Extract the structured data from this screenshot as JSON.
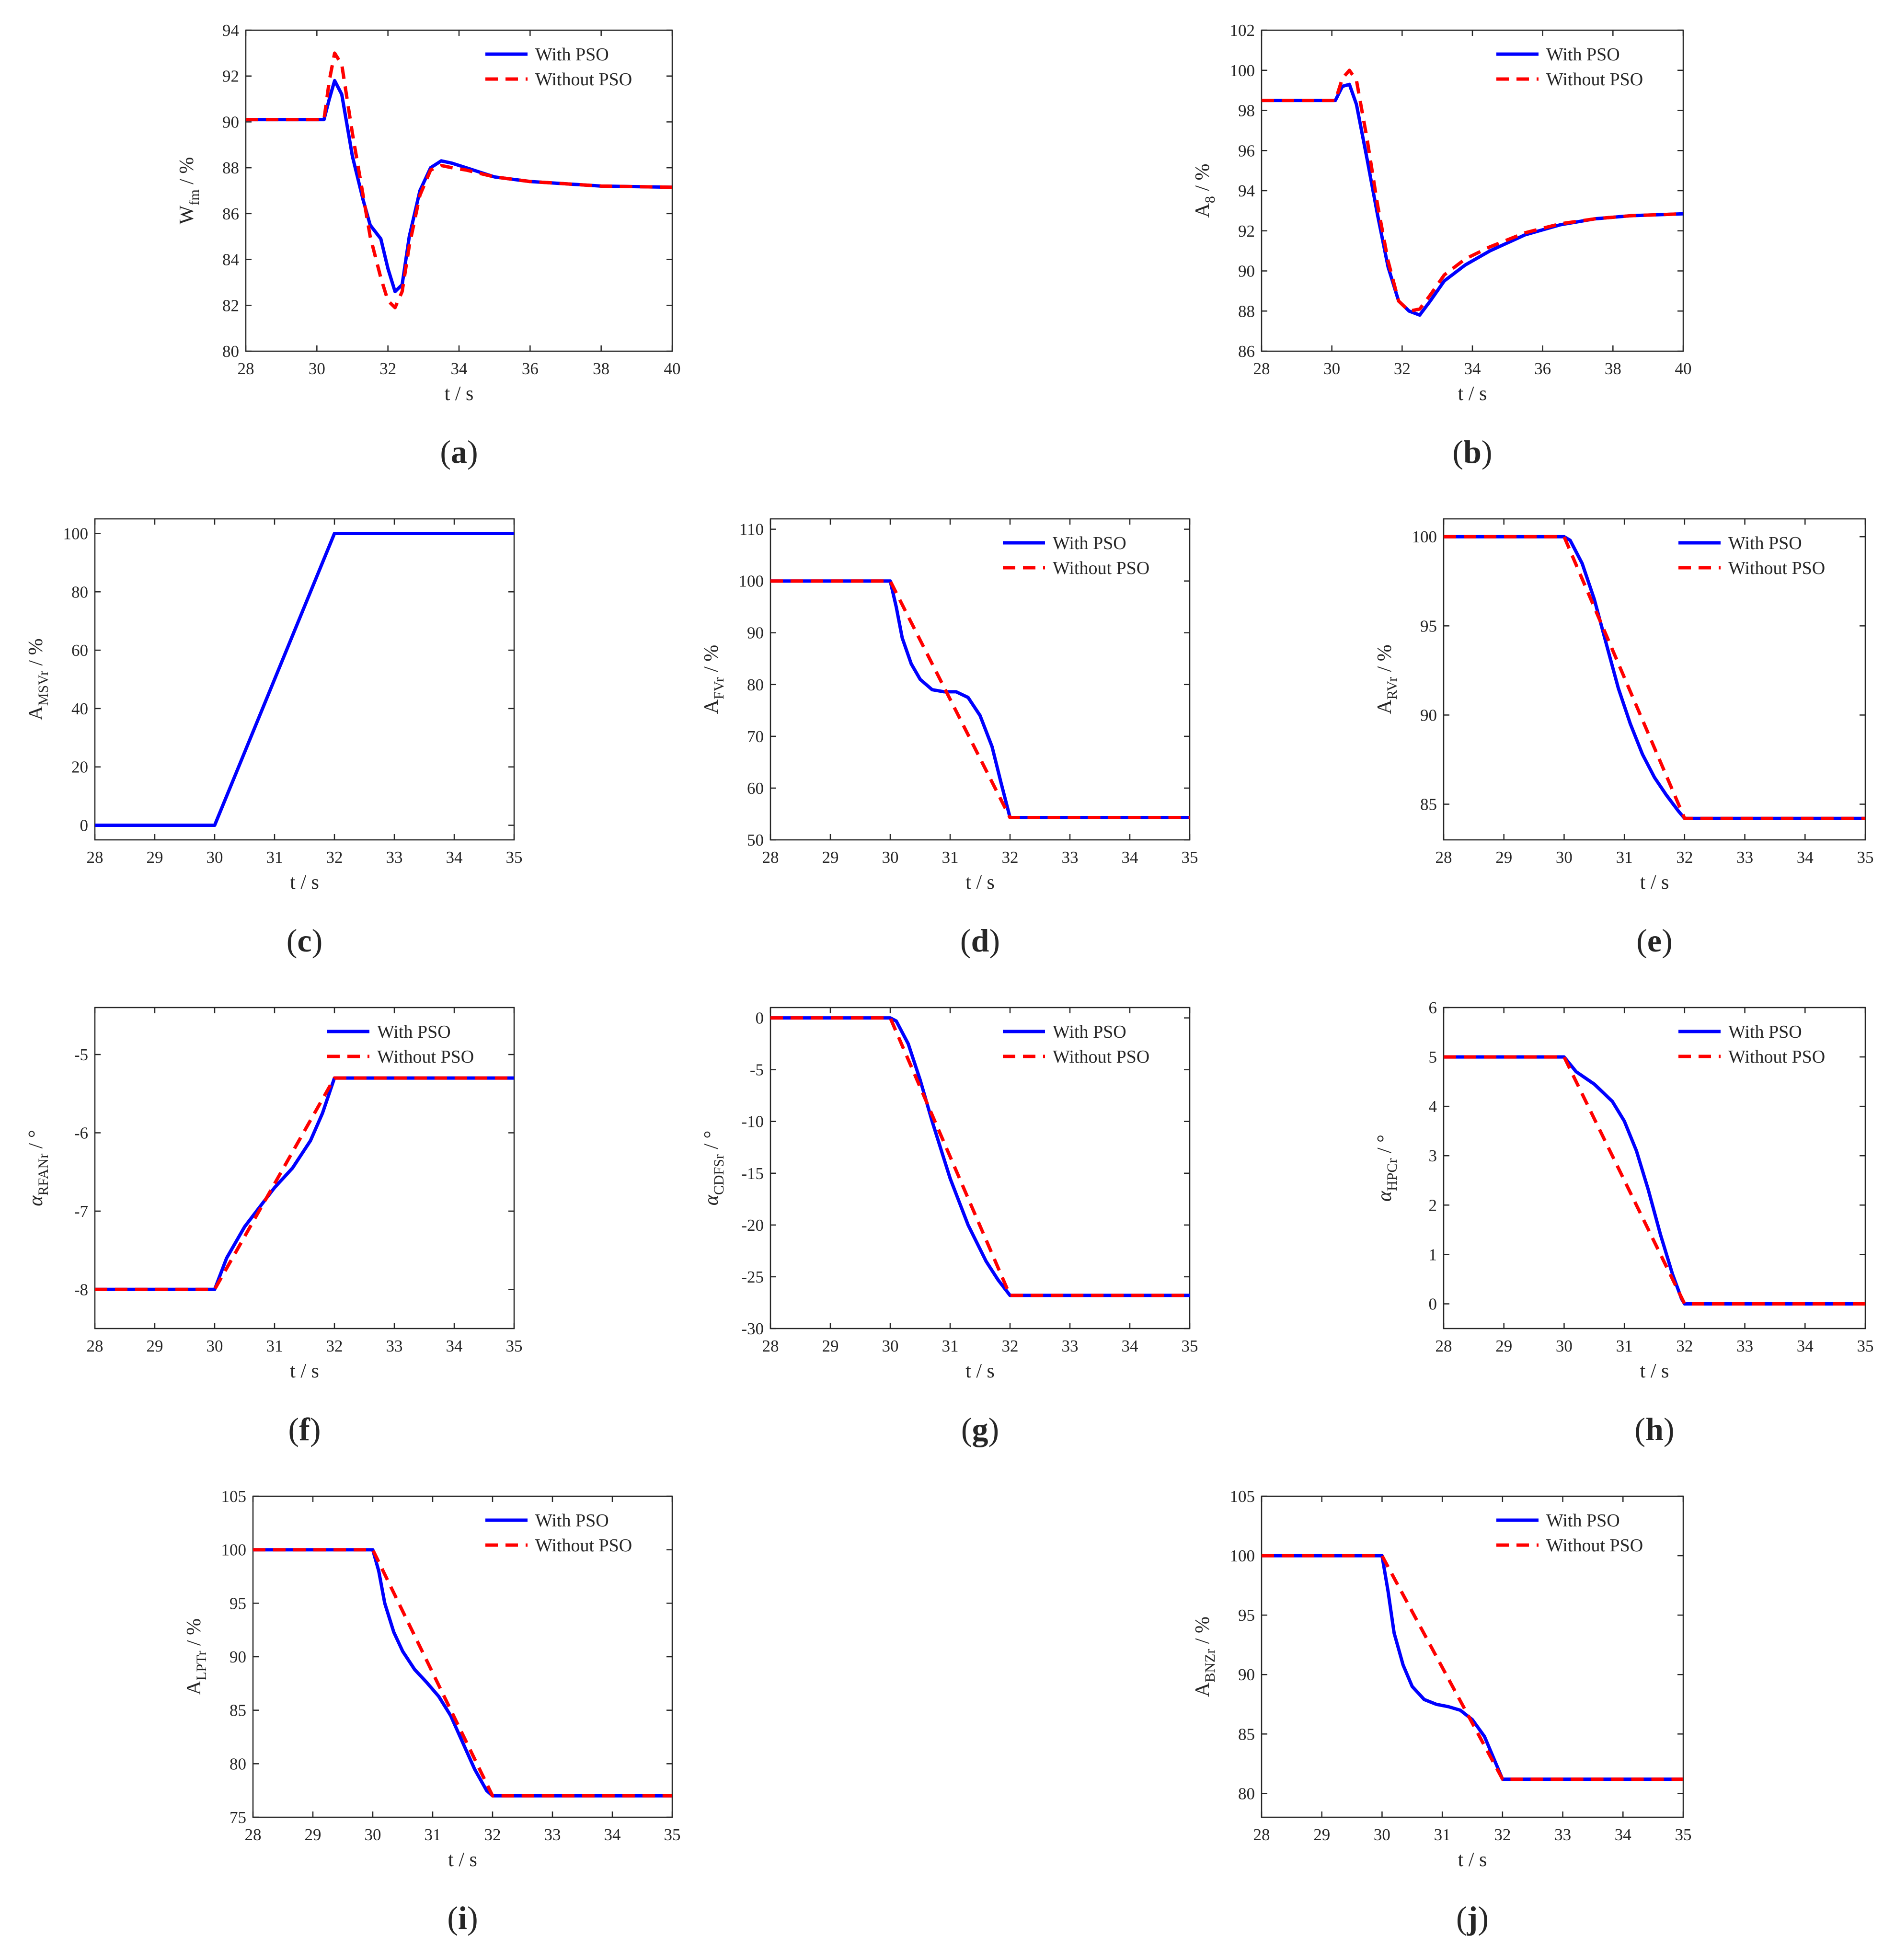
{
  "figure": {
    "legend": {
      "with": "With PSO",
      "without": "Without PSO"
    },
    "colors": {
      "with": "#0000ff",
      "without": "#ff0000",
      "axis": "#262626"
    }
  },
  "chart_data": [
    {
      "id": "a",
      "panel_label": "a",
      "type": "line",
      "ylabel_main": "W",
      "ylabel_sub": "fm",
      "ylabel_unit": " / %",
      "xlabel": "t / s",
      "xlim": [
        28,
        40
      ],
      "xticks": [
        28,
        30,
        32,
        34,
        36,
        38,
        40
      ],
      "ylim": [
        80,
        94
      ],
      "yticks": [
        80,
        82,
        84,
        86,
        88,
        90,
        92,
        94
      ],
      "legend": true,
      "series": [
        {
          "name": "With PSO",
          "x": [
            28,
            30.2,
            30.35,
            30.5,
            30.7,
            31.0,
            31.3,
            31.5,
            31.8,
            32.0,
            32.2,
            32.4,
            32.6,
            32.9,
            33.2,
            33.5,
            33.8,
            34.2,
            35.0,
            36.0,
            37.0,
            38.0,
            40.0
          ],
          "y": [
            90.1,
            90.1,
            91.0,
            91.8,
            91.2,
            88.5,
            86.6,
            85.5,
            84.9,
            83.6,
            82.6,
            82.9,
            85.0,
            87.0,
            88.0,
            88.3,
            88.2,
            88.0,
            87.6,
            87.4,
            87.3,
            87.2,
            87.15
          ]
        },
        {
          "name": "Without PSO",
          "x": [
            28,
            30.2,
            30.35,
            30.5,
            30.7,
            31.0,
            31.3,
            31.5,
            31.8,
            32.0,
            32.2,
            32.4,
            32.6,
            32.9,
            33.2,
            33.5,
            33.8,
            34.2,
            35.0,
            36.0,
            37.0,
            38.0,
            40.0
          ],
          "y": [
            90.1,
            90.1,
            91.8,
            93.0,
            92.5,
            89.5,
            86.8,
            85.0,
            83.2,
            82.2,
            81.9,
            82.6,
            84.6,
            86.8,
            87.9,
            88.1,
            88.0,
            87.9,
            87.6,
            87.4,
            87.3,
            87.2,
            87.15
          ]
        }
      ]
    },
    {
      "id": "b",
      "panel_label": "b",
      "type": "line",
      "ylabel_main": "A",
      "ylabel_sub": "8",
      "ylabel_unit": " / %",
      "xlabel": "t / s",
      "xlim": [
        28,
        40
      ],
      "xticks": [
        28,
        30,
        32,
        34,
        36,
        38,
        40
      ],
      "ylim": [
        86,
        102
      ],
      "yticks": [
        86,
        88,
        90,
        92,
        94,
        96,
        98,
        100,
        102
      ],
      "legend": true,
      "series": [
        {
          "name": "With PSO",
          "x": [
            28,
            30.1,
            30.3,
            30.5,
            30.7,
            31.0,
            31.3,
            31.6,
            31.9,
            32.2,
            32.5,
            32.8,
            33.2,
            33.8,
            34.5,
            35.5,
            36.5,
            37.5,
            38.5,
            40.0
          ],
          "y": [
            98.5,
            98.5,
            99.2,
            99.3,
            98.3,
            95.6,
            92.8,
            90.2,
            88.5,
            88.0,
            87.8,
            88.5,
            89.5,
            90.3,
            91.0,
            91.8,
            92.3,
            92.6,
            92.75,
            92.85
          ]
        },
        {
          "name": "Without PSO",
          "x": [
            28,
            30.1,
            30.3,
            30.5,
            30.7,
            31.0,
            31.3,
            31.6,
            31.9,
            32.2,
            32.5,
            32.8,
            33.2,
            33.8,
            34.5,
            35.5,
            36.5,
            37.5,
            38.5,
            40.0
          ],
          "y": [
            98.5,
            98.5,
            99.6,
            100.0,
            99.5,
            96.6,
            93.3,
            90.5,
            88.5,
            88.0,
            88.1,
            88.8,
            89.8,
            90.6,
            91.2,
            91.9,
            92.35,
            92.6,
            92.75,
            92.85
          ]
        }
      ]
    },
    {
      "id": "c",
      "panel_label": "c",
      "type": "line",
      "ylabel_main": "A",
      "ylabel_sub": "MSVr",
      "ylabel_unit": " / %",
      "xlabel": "t / s",
      "xlim": [
        28,
        35
      ],
      "xticks": [
        28,
        29,
        30,
        31,
        32,
        33,
        34,
        35
      ],
      "ylim": [
        -5,
        105
      ],
      "yticks": [
        0,
        20,
        40,
        60,
        80,
        100
      ],
      "legend": false,
      "series": [
        {
          "name": "With PSO",
          "x": [
            28,
            30,
            32,
            35
          ],
          "y": [
            0,
            0,
            100,
            100
          ]
        }
      ]
    },
    {
      "id": "d",
      "panel_label": "d",
      "type": "line",
      "ylabel_main": "A",
      "ylabel_sub": "FVr",
      "ylabel_unit": " / %",
      "xlabel": "t / s",
      "xlim": [
        28,
        35
      ],
      "xticks": [
        28,
        29,
        30,
        31,
        32,
        33,
        34,
        35
      ],
      "ylim": [
        50,
        112
      ],
      "yticks": [
        50,
        60,
        70,
        80,
        90,
        100,
        110
      ],
      "legend": true,
      "series": [
        {
          "name": "With PSO",
          "x": [
            28,
            30,
            30.1,
            30.2,
            30.35,
            30.5,
            30.7,
            30.9,
            31.1,
            31.3,
            31.5,
            31.7,
            31.85,
            32,
            35
          ],
          "y": [
            100,
            100,
            95,
            89,
            84,
            81,
            79,
            78.6,
            78.6,
            77.5,
            74,
            68,
            61,
            54.3,
            54.3
          ]
        },
        {
          "name": "Without PSO",
          "x": [
            28,
            30,
            32,
            35
          ],
          "y": [
            100,
            100,
            54.3,
            54.3
          ]
        }
      ]
    },
    {
      "id": "e",
      "panel_label": "e",
      "type": "line",
      "ylabel_main": "A",
      "ylabel_sub": "RVr",
      "ylabel_unit": " / %",
      "xlabel": "t / s",
      "xlim": [
        28,
        35
      ],
      "xticks": [
        28,
        29,
        30,
        31,
        32,
        33,
        34,
        35
      ],
      "ylim": [
        83,
        101
      ],
      "yticks": [
        85,
        90,
        95,
        100
      ],
      "legend": true,
      "series": [
        {
          "name": "With PSO",
          "x": [
            28,
            30,
            30.1,
            30.3,
            30.5,
            30.7,
            30.9,
            31.1,
            31.3,
            31.5,
            31.7,
            31.9,
            32,
            35
          ],
          "y": [
            100,
            100,
            99.8,
            98.5,
            96.5,
            94.0,
            91.5,
            89.5,
            87.8,
            86.5,
            85.5,
            84.6,
            84.2,
            84.2
          ]
        },
        {
          "name": "Without PSO",
          "x": [
            28,
            30,
            32,
            35
          ],
          "y": [
            100,
            100,
            84.2,
            84.2
          ]
        }
      ]
    },
    {
      "id": "f",
      "panel_label": "f",
      "type": "line",
      "ylabel_main": "α",
      "ylabel_sub": "RFANr",
      "ylabel_unit": "  /  °",
      "xlabel": "t  /  s",
      "xlim": [
        28,
        35
      ],
      "xticks": [
        28,
        29,
        30,
        31,
        32,
        33,
        34,
        35
      ],
      "ylim": [
        -8.5,
        -4.4
      ],
      "yticks": [
        -8,
        -7,
        -6,
        -5
      ],
      "legend": true,
      "series": [
        {
          "name": "With PSO",
          "x": [
            28,
            30,
            30.2,
            30.5,
            30.8,
            31.0,
            31.3,
            31.6,
            31.8,
            32,
            35
          ],
          "y": [
            -8,
            -8,
            -7.6,
            -7.2,
            -6.9,
            -6.7,
            -6.45,
            -6.1,
            -5.75,
            -5.3,
            -5.3
          ]
        },
        {
          "name": "Without PSO",
          "x": [
            28,
            30,
            32,
            35
          ],
          "y": [
            -8,
            -8,
            -5.3,
            -5.3
          ]
        }
      ]
    },
    {
      "id": "g",
      "panel_label": "g",
      "type": "line",
      "ylabel_main": "α",
      "ylabel_sub": "CDFSr",
      "ylabel_unit": "  /  °",
      "xlabel": "t  /  s",
      "xlim": [
        28,
        35
      ],
      "xticks": [
        28,
        29,
        30,
        31,
        32,
        33,
        34,
        35
      ],
      "ylim": [
        -30,
        1
      ],
      "yticks": [
        -30,
        -25,
        -20,
        -15,
        -10,
        -5,
        0
      ],
      "legend": true,
      "series": [
        {
          "name": "With PSO",
          "x": [
            28,
            30,
            30.1,
            30.3,
            30.5,
            30.7,
            31.0,
            31.3,
            31.6,
            31.8,
            32,
            35
          ],
          "y": [
            0,
            0,
            -0.3,
            -2.5,
            -6,
            -10,
            -15.5,
            -20,
            -23.5,
            -25.3,
            -26.8,
            -26.8
          ]
        },
        {
          "name": "Without PSO",
          "x": [
            28,
            30,
            32,
            35
          ],
          "y": [
            0,
            0,
            -26.8,
            -26.8
          ]
        }
      ]
    },
    {
      "id": "h",
      "panel_label": "h",
      "type": "line",
      "ylabel_main": "α",
      "ylabel_sub": "HPCr",
      "ylabel_unit": " / °",
      "xlabel": "t / s",
      "xlim": [
        28,
        35
      ],
      "xticks": [
        28,
        29,
        30,
        31,
        32,
        33,
        34,
        35
      ],
      "ylim": [
        -0.5,
        6
      ],
      "yticks": [
        0,
        1,
        2,
        3,
        4,
        5,
        6
      ],
      "legend": true,
      "series": [
        {
          "name": "With PSO",
          "x": [
            28,
            30,
            30.2,
            30.5,
            30.8,
            31.0,
            31.2,
            31.4,
            31.6,
            31.8,
            31.95,
            32,
            35
          ],
          "y": [
            5,
            5,
            4.7,
            4.45,
            4.1,
            3.7,
            3.1,
            2.3,
            1.4,
            0.6,
            0.1,
            0,
            0
          ]
        },
        {
          "name": "Without PSO",
          "x": [
            28,
            30,
            32,
            35
          ],
          "y": [
            5,
            5,
            0,
            0
          ]
        }
      ]
    },
    {
      "id": "i",
      "panel_label": "i",
      "type": "line",
      "ylabel_main": "A",
      "ylabel_sub": "LPTr",
      "ylabel_unit": " / %",
      "xlabel": "t / s",
      "xlim": [
        28,
        35
      ],
      "xticks": [
        28,
        29,
        30,
        31,
        32,
        33,
        34,
        35
      ],
      "ylim": [
        75,
        105
      ],
      "yticks": [
        75,
        80,
        85,
        90,
        95,
        100,
        105
      ],
      "legend": true,
      "series": [
        {
          "name": "With PSO",
          "x": [
            28,
            30,
            30.1,
            30.2,
            30.35,
            30.5,
            30.7,
            30.9,
            31.1,
            31.3,
            31.5,
            31.7,
            31.9,
            32,
            35
          ],
          "y": [
            100,
            100,
            98,
            95,
            92.3,
            90.5,
            88.8,
            87.6,
            86.3,
            84.5,
            82.0,
            79.5,
            77.5,
            77,
            77
          ]
        },
        {
          "name": "Without PSO",
          "x": [
            28,
            30,
            32,
            35
          ],
          "y": [
            100,
            100,
            77,
            77
          ]
        }
      ]
    },
    {
      "id": "j",
      "panel_label": "j",
      "type": "line",
      "ylabel_main": "A",
      "ylabel_sub": "BNZr",
      "ylabel_unit": " / %",
      "xlabel": "t / s",
      "xlim": [
        28,
        35
      ],
      "xticks": [
        28,
        29,
        30,
        31,
        32,
        33,
        34,
        35
      ],
      "ylim": [
        78,
        105
      ],
      "yticks": [
        80,
        85,
        90,
        95,
        100,
        105
      ],
      "legend": true,
      "series": [
        {
          "name": "With PSO",
          "x": [
            28,
            30,
            30.1,
            30.2,
            30.35,
            30.5,
            30.7,
            30.9,
            31.1,
            31.3,
            31.5,
            31.7,
            31.85,
            32,
            35
          ],
          "y": [
            100,
            100,
            97,
            93.5,
            90.8,
            89.0,
            87.9,
            87.5,
            87.3,
            87.0,
            86.2,
            84.8,
            83.0,
            81.2,
            81.2
          ]
        },
        {
          "name": "Without PSO",
          "x": [
            28,
            30,
            32,
            35
          ],
          "y": [
            100,
            100,
            81.2,
            81.2
          ]
        }
      ]
    }
  ]
}
